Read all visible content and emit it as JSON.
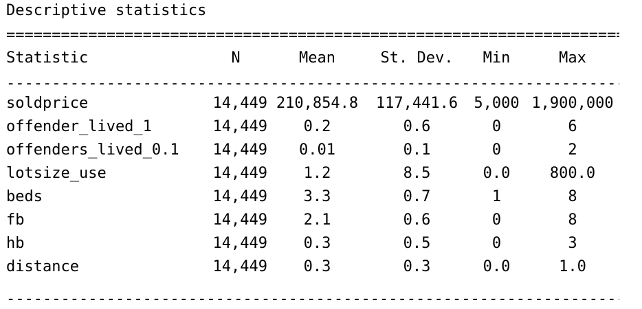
{
  "title": "Descriptive statistics",
  "rules": {
    "double": "================================================================================",
    "single": "--------------------------------------------------------------------------------"
  },
  "columns": [
    "Statistic",
    "N",
    "Mean",
    "St. Dev.",
    "Min",
    "Max"
  ],
  "rows": [
    {
      "stat": "soldprice",
      "n": "14,449",
      "mean": "210,854.8",
      "sd": "117,441.6",
      "min": "5,000",
      "max": "1,900,000"
    },
    {
      "stat": "offender_lived_1",
      "n": "14,449",
      "mean": "0.2",
      "sd": "0.6",
      "min": "0",
      "max": "6"
    },
    {
      "stat": "offenders_lived_0.1",
      "n": "14,449",
      "mean": "0.01",
      "sd": "0.1",
      "min": "0",
      "max": "2"
    },
    {
      "stat": "lotsize_use",
      "n": "14,449",
      "mean": "1.2",
      "sd": "8.5",
      "min": "0.0",
      "max": "800.0"
    },
    {
      "stat": "beds",
      "n": "14,449",
      "mean": "3.3",
      "sd": "0.7",
      "min": "1",
      "max": "8"
    },
    {
      "stat": "fb",
      "n": "14,449",
      "mean": "2.1",
      "sd": "0.6",
      "min": "0",
      "max": "8"
    },
    {
      "stat": "hb",
      "n": "14,449",
      "mean": "0.3",
      "sd": "0.5",
      "min": "0",
      "max": "3"
    },
    {
      "stat": "distance",
      "n": "14,449",
      "mean": "0.3",
      "sd": "0.3",
      "min": "0.0",
      "max": "1.0"
    }
  ]
}
